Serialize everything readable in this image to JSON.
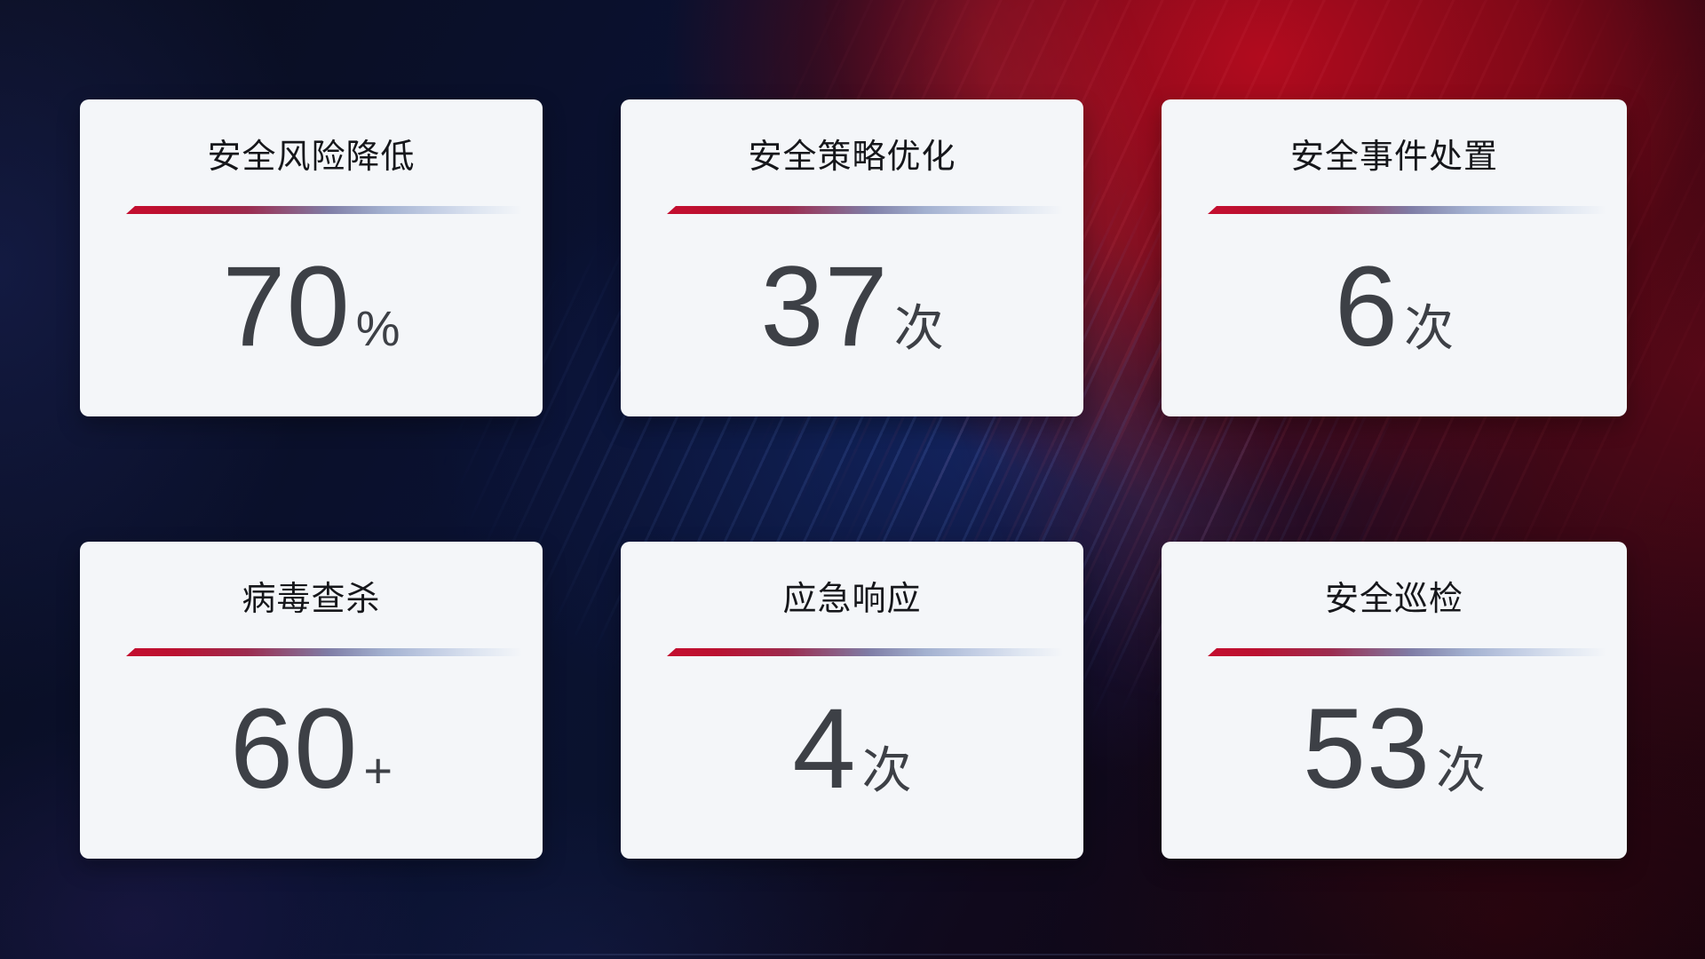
{
  "cards": [
    {
      "title": "安全风险降低",
      "value": "70",
      "unit": "%"
    },
    {
      "title": "安全策略优化",
      "value": "37",
      "unit": "次"
    },
    {
      "title": "安全事件处置",
      "value": "6",
      "unit": "次"
    },
    {
      "title": "病毒查杀",
      "value": "60",
      "unit": "+"
    },
    {
      "title": "应急响应",
      "value": "4",
      "unit": "次"
    },
    {
      "title": "安全巡检",
      "value": "53",
      "unit": "次"
    }
  ],
  "colors": {
    "card_background": "#f4f6f9",
    "title_text": "#16171b",
    "value_text": "#3d4046",
    "divider_red": "#c40e2f",
    "divider_slate": "#7f7da6",
    "divider_light_blue": "#c2cde4",
    "background_red": "#a50a1c",
    "background_navy": "#0a1130"
  }
}
